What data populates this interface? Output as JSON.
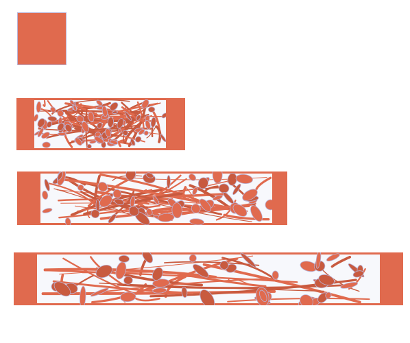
{
  "figure": {
    "panels": [
      {
        "id": "panel-1",
        "stage": "initial",
        "state": "solid block"
      },
      {
        "id": "panel-2",
        "stage": "stretch-1",
        "state": "fine porous network"
      },
      {
        "id": "panel-3",
        "stage": "stretch-2",
        "state": "coarsening network"
      },
      {
        "id": "panel-4",
        "stage": "stretch-3",
        "state": "sparse fragmented network"
      }
    ],
    "colors": {
      "material": "#e06a4e",
      "material_dark": "#c85a3f",
      "edge": "#b9b4d8",
      "void": "#f7f8fc",
      "background": "#ffffff"
    }
  }
}
